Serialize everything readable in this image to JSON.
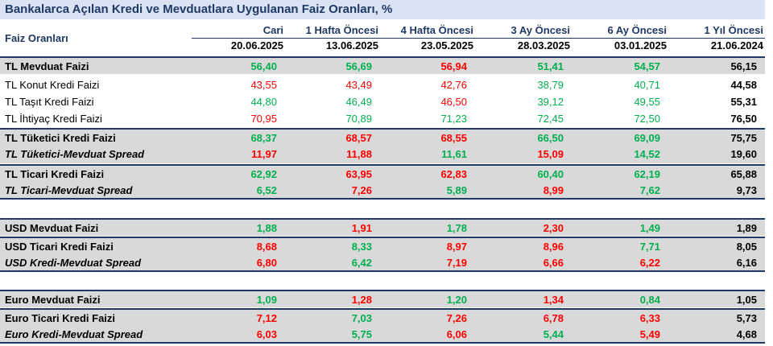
{
  "title": "Bankalarca Açılan Kredi ve Mevduatlara Uygulanan Faiz Oranları, %",
  "header": {
    "label": "Faiz Oranları",
    "columns": [
      "Cari",
      "1 Hafta Öncesi",
      "4 Hafta Öncesi",
      "3 Ay Öncesi",
      "6 Ay Öncesi",
      "1 Yıl Öncesi"
    ],
    "dates": [
      "20.06.2025",
      "13.06.2025",
      "23.05.2025",
      "28.03.2025",
      "03.01.2025",
      "21.06.2024"
    ]
  },
  "rows": [
    {
      "label": "TL Mevduat Faizi",
      "values": [
        "56,40",
        "56,69",
        "56,94",
        "51,41",
        "54,57",
        "56,15"
      ],
      "colors": [
        "g",
        "g",
        "r",
        "g",
        "g",
        "k"
      ]
    },
    {
      "label": "TL Konut Kredi Faizi",
      "values": [
        "43,55",
        "43,49",
        "42,76",
        "38,79",
        "40,71",
        "44,58"
      ],
      "colors": [
        "r",
        "r",
        "r",
        "g",
        "g",
        "k"
      ]
    },
    {
      "label": "TL Taşıt Kredi Faizi",
      "values": [
        "44,80",
        "46,49",
        "46,50",
        "39,12",
        "49,55",
        "55,31"
      ],
      "colors": [
        "g",
        "g",
        "r",
        "g",
        "g",
        "k"
      ]
    },
    {
      "label": "TL İhtiyaç Kredi Faizi",
      "values": [
        "70,95",
        "70,89",
        "71,23",
        "72,45",
        "72,50",
        "76,50"
      ],
      "colors": [
        "r",
        "g",
        "g",
        "g",
        "g",
        "k"
      ]
    },
    {
      "label": "TL Tüketici Kredi Faizi",
      "values": [
        "68,37",
        "68,57",
        "68,55",
        "66,50",
        "69,09",
        "75,75"
      ],
      "colors": [
        "g",
        "r",
        "r",
        "g",
        "g",
        "k"
      ]
    },
    {
      "label": "TL Tüketici-Mevduat Spread",
      "values": [
        "11,97",
        "11,88",
        "11,61",
        "15,09",
        "14,52",
        "19,60"
      ],
      "colors": [
        "r",
        "r",
        "g",
        "r",
        "g",
        "k"
      ]
    },
    {
      "label": "TL Ticari Kredi Faizi",
      "values": [
        "62,92",
        "63,95",
        "62,83",
        "60,40",
        "62,19",
        "65,88"
      ],
      "colors": [
        "g",
        "r",
        "r",
        "g",
        "g",
        "k"
      ]
    },
    {
      "label": "TL Ticari-Mevduat Spread",
      "values": [
        "6,52",
        "7,26",
        "5,89",
        "8,99",
        "7,62",
        "9,73"
      ],
      "colors": [
        "g",
        "r",
        "g",
        "r",
        "g",
        "k"
      ]
    },
    {
      "label": "USD Mevduat Faizi",
      "values": [
        "1,88",
        "1,91",
        "1,78",
        "2,30",
        "1,49",
        "1,89"
      ],
      "colors": [
        "g",
        "r",
        "g",
        "r",
        "g",
        "k"
      ]
    },
    {
      "label": "USD Ticari Kredi Faizi",
      "values": [
        "8,68",
        "8,33",
        "8,97",
        "8,96",
        "7,71",
        "8,05"
      ],
      "colors": [
        "r",
        "g",
        "r",
        "r",
        "g",
        "k"
      ]
    },
    {
      "label": "USD Kredi-Mevduat Spread",
      "values": [
        "6,80",
        "6,42",
        "7,19",
        "6,66",
        "6,22",
        "6,16"
      ],
      "colors": [
        "r",
        "g",
        "r",
        "r",
        "r",
        "k"
      ]
    },
    {
      "label": "Euro Mevduat Faizi",
      "values": [
        "1,09",
        "1,28",
        "1,20",
        "1,34",
        "0,84",
        "1,05"
      ],
      "colors": [
        "g",
        "r",
        "g",
        "r",
        "g",
        "k"
      ]
    },
    {
      "label": "Euro Ticari Kredi Faizi",
      "values": [
        "7,12",
        "7,03",
        "7,26",
        "6,78",
        "6,33",
        "5,73"
      ],
      "colors": [
        "r",
        "g",
        "r",
        "r",
        "r",
        "k"
      ]
    },
    {
      "label": "Euro Kredi-Mevduat Spread",
      "values": [
        "6,03",
        "5,75",
        "6,06",
        "5,44",
        "5,49",
        "4,68"
      ],
      "colors": [
        "r",
        "g",
        "r",
        "g",
        "r",
        "k"
      ]
    }
  ],
  "palette": {
    "increase": "#ff0000",
    "decrease": "#00b050",
    "header": "#1f3864",
    "title_bg": "#dae3f3",
    "shade": "#d9d9d9"
  }
}
